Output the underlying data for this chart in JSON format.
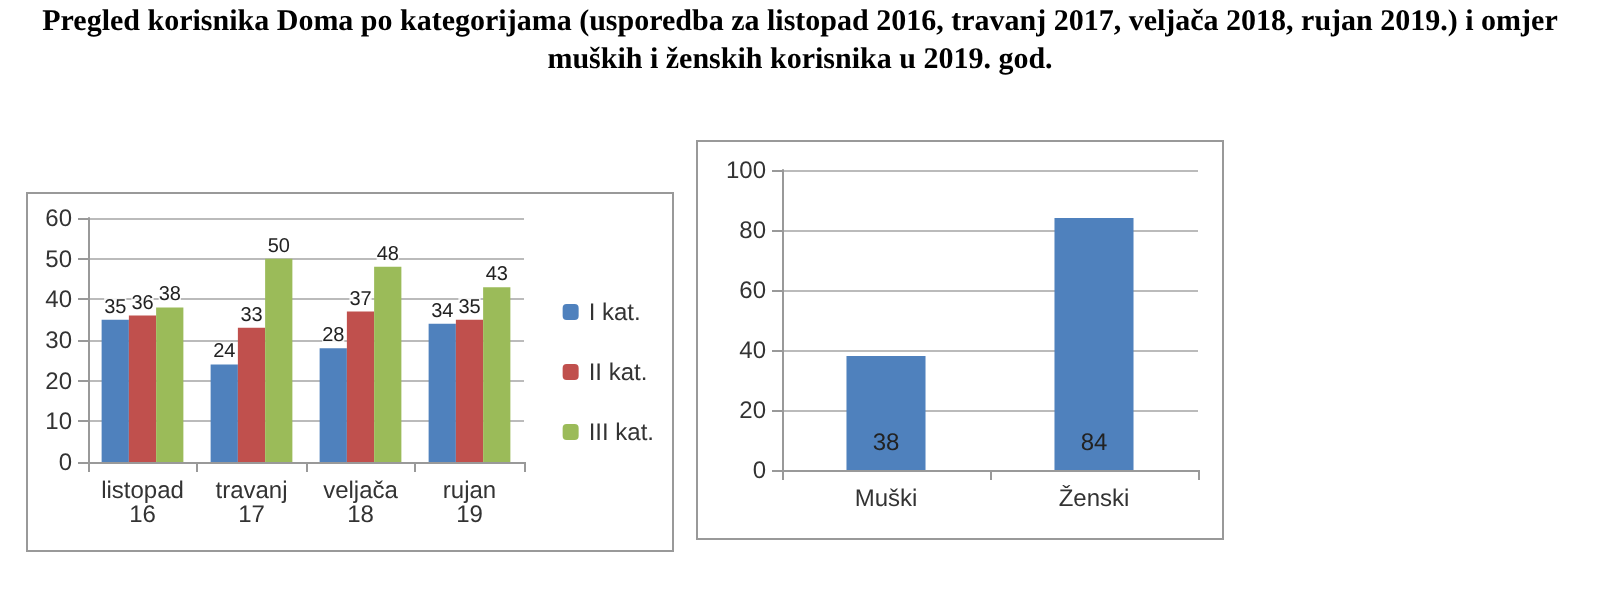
{
  "chart_data": [
    {
      "type": "bar",
      "title": "Pregled korisnika Doma po kategorijama (usporedba za listopad 2016, travanj 2017, veljača 2018, rujan 2019.) i omjer muških i ženskih korisnika u 2019. god.",
      "categories": [
        "listopad 16",
        "travanj 17",
        "veljača 18",
        "rujan 19"
      ],
      "series": [
        {
          "name": "I kat.",
          "color": "#4f81bd",
          "values": [
            35,
            24,
            28,
            34
          ]
        },
        {
          "name": "II kat.",
          "color": "#c0504d",
          "values": [
            36,
            33,
            37,
            35
          ]
        },
        {
          "name": "III kat.",
          "color": "#9bbb59",
          "values": [
            38,
            50,
            48,
            43
          ]
        }
      ],
      "ylim": [
        0,
        60
      ],
      "yticks": [
        0,
        10,
        20,
        30,
        40,
        50,
        60
      ],
      "grid": "y",
      "legend": "right",
      "data_labels": true
    },
    {
      "type": "bar",
      "categories": [
        "Muški",
        "Ženski"
      ],
      "values": [
        38,
        84
      ],
      "color": "#4f81bd",
      "ylim": [
        0,
        100
      ],
      "yticks": [
        0,
        20,
        40,
        60,
        80,
        100
      ],
      "grid": "y",
      "data_labels": true
    }
  ]
}
